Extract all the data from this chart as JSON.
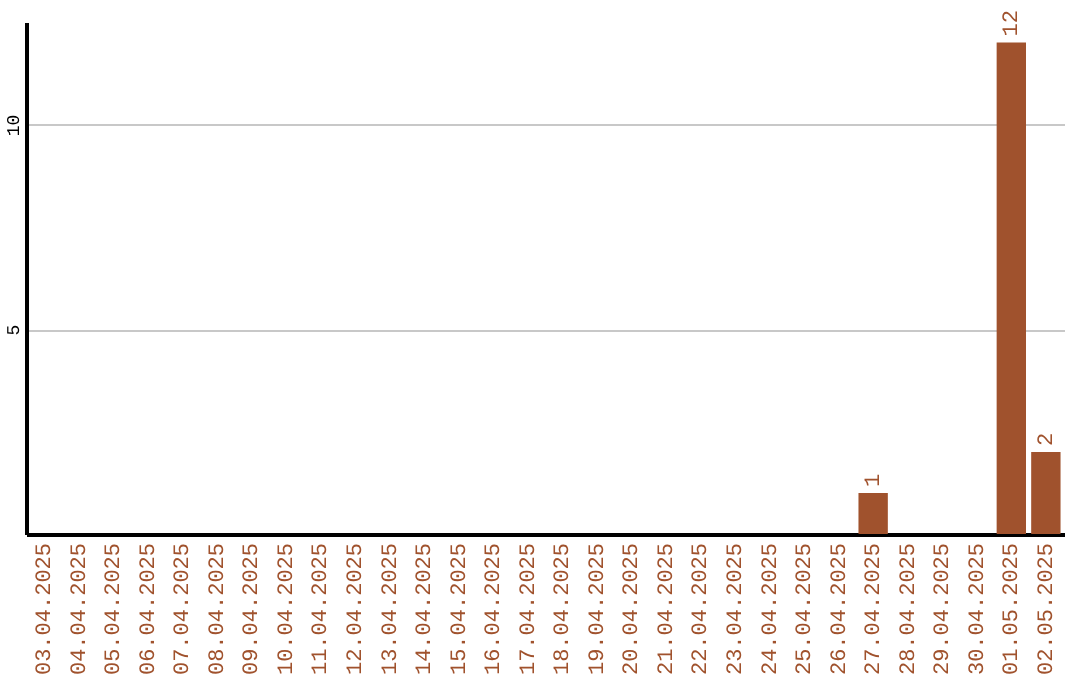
{
  "chart_data": {
    "type": "bar",
    "categories": [
      "03.04.2025",
      "04.04.2025",
      "05.04.2025",
      "06.04.2025",
      "07.04.2025",
      "08.04.2025",
      "09.04.2025",
      "10.04.2025",
      "11.04.2025",
      "12.04.2025",
      "13.04.2025",
      "14.04.2025",
      "15.04.2025",
      "16.04.2025",
      "17.04.2025",
      "18.04.2025",
      "19.04.2025",
      "20.04.2025",
      "21.04.2025",
      "22.04.2025",
      "23.04.2025",
      "24.04.2025",
      "25.04.2025",
      "26.04.2025",
      "27.04.2025",
      "28.04.2025",
      "29.04.2025",
      "30.04.2025",
      "01.05.2025",
      "02.05.2025"
    ],
    "values": [
      0,
      0,
      0,
      0,
      0,
      0,
      0,
      0,
      0,
      0,
      0,
      0,
      0,
      0,
      0,
      0,
      0,
      0,
      0,
      0,
      0,
      0,
      0,
      0,
      1,
      0,
      0,
      0,
      12,
      2
    ],
    "value_labels": [
      null,
      null,
      null,
      null,
      null,
      null,
      null,
      null,
      null,
      null,
      null,
      null,
      null,
      null,
      null,
      null,
      null,
      null,
      null,
      null,
      null,
      null,
      null,
      null,
      "1",
      null,
      null,
      null,
      "12",
      "2"
    ],
    "color": "#a0522d",
    "ylim": [
      0,
      12.5
    ],
    "yticks": [
      5,
      10
    ],
    "grid": "y"
  }
}
